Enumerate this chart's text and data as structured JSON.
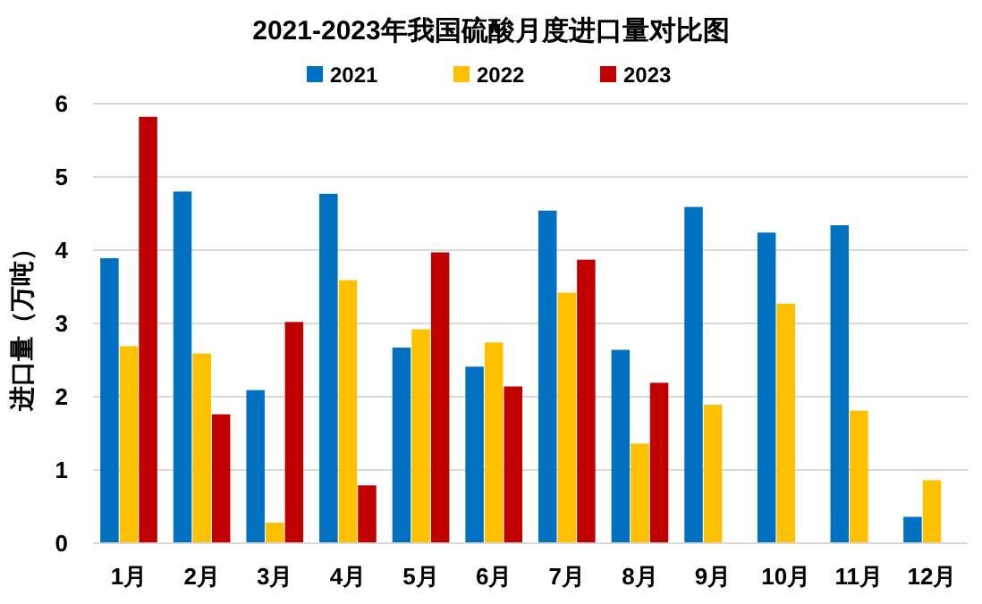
{
  "chart_data": {
    "type": "bar",
    "title": "2021-2023年我国硫酸月度进口量对比图",
    "ylabel": "进口量（万吨）",
    "categories": [
      "1月",
      "2月",
      "3月",
      "4月",
      "5月",
      "6月",
      "7月",
      "8月",
      "9月",
      "10月",
      "11月",
      "12月"
    ],
    "series": [
      {
        "name": "2021",
        "color": "#0070c0",
        "values": [
          3.89,
          4.8,
          2.09,
          4.77,
          2.67,
          2.41,
          4.54,
          2.64,
          4.59,
          4.24,
          4.34,
          0.36
        ]
      },
      {
        "name": "2022",
        "color": "#ffc000",
        "values": [
          2.69,
          2.59,
          0.28,
          3.59,
          2.92,
          2.74,
          3.42,
          1.36,
          1.89,
          3.27,
          1.81,
          0.86
        ]
      },
      {
        "name": "2023",
        "color": "#c00000",
        "values": [
          5.82,
          1.76,
          3.02,
          0.79,
          3.97,
          2.14,
          3.87,
          2.19,
          null,
          null,
          null,
          null
        ]
      }
    ],
    "ylim": [
      0,
      6
    ],
    "yticks": [
      0,
      1,
      2,
      3,
      4,
      5,
      6
    ],
    "grid": "y",
    "legend": "top"
  }
}
